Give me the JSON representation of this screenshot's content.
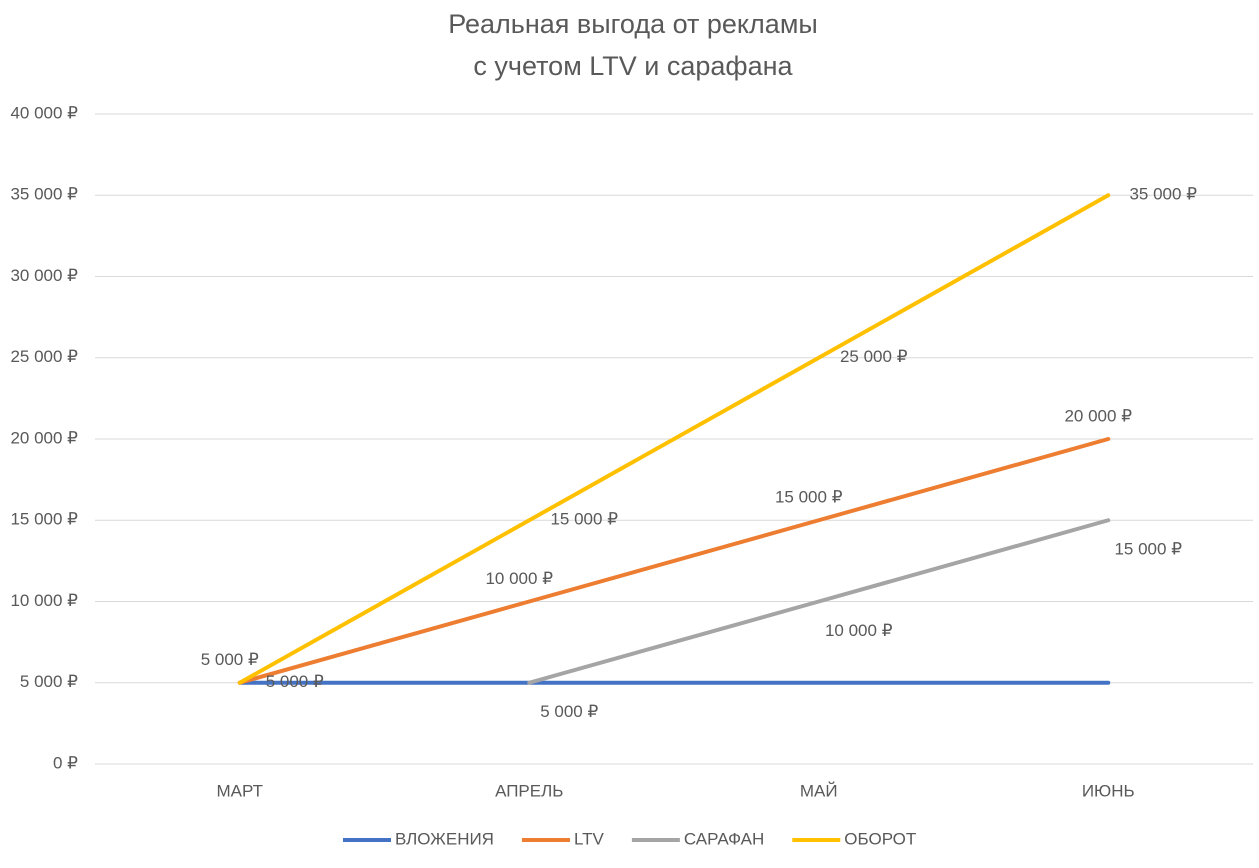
{
  "chart_data": {
    "type": "line",
    "title": [
      "Реальная выгода от рекламы",
      "с учетом LTV и сарафана"
    ],
    "categories": [
      "МАРТ",
      "АПРЕЛЬ",
      "МАЙ",
      "ИЮНЬ"
    ],
    "series": [
      {
        "name": "ВЛОЖЕНИЯ",
        "color": "#4472c4",
        "values": [
          5000,
          5000,
          5000,
          5000
        ]
      },
      {
        "name": "LTV",
        "color": "#ed7d31",
        "values": [
          5000,
          10000,
          15000,
          20000
        ],
        "value_labels": [
          "5 000 ₽",
          "10 000 ₽",
          "15 000 ₽",
          "20 000 ₽"
        ]
      },
      {
        "name": "САРАФАН",
        "color": "#a5a5a5",
        "values": [
          null,
          5000,
          10000,
          15000
        ],
        "value_labels": [
          null,
          "5 000 ₽",
          "10 000 ₽",
          "15 000 ₽"
        ]
      },
      {
        "name": "ОБОРОТ",
        "color": "#ffc000",
        "values": [
          5000,
          15000,
          25000,
          35000
        ],
        "value_labels": [
          "5 000 ₽",
          "15 000 ₽",
          "25 000 ₽",
          "35 000 ₽"
        ]
      }
    ],
    "ylim": [
      0,
      40000
    ],
    "yticks": [
      {
        "value": 0,
        "label": "0 ₽"
      },
      {
        "value": 5000,
        "label": "5 000 ₽"
      },
      {
        "value": 10000,
        "label": "10 000 ₽"
      },
      {
        "value": 15000,
        "label": "15 000 ₽"
      },
      {
        "value": 20000,
        "label": "20 000 ₽"
      },
      {
        "value": 25000,
        "label": "25 000 ₽"
      },
      {
        "value": 30000,
        "label": "30 000 ₽"
      },
      {
        "value": 35000,
        "label": "35 000 ₽"
      },
      {
        "value": 40000,
        "label": "40 000 ₽"
      }
    ],
    "grid": true,
    "legend": "bottom"
  }
}
